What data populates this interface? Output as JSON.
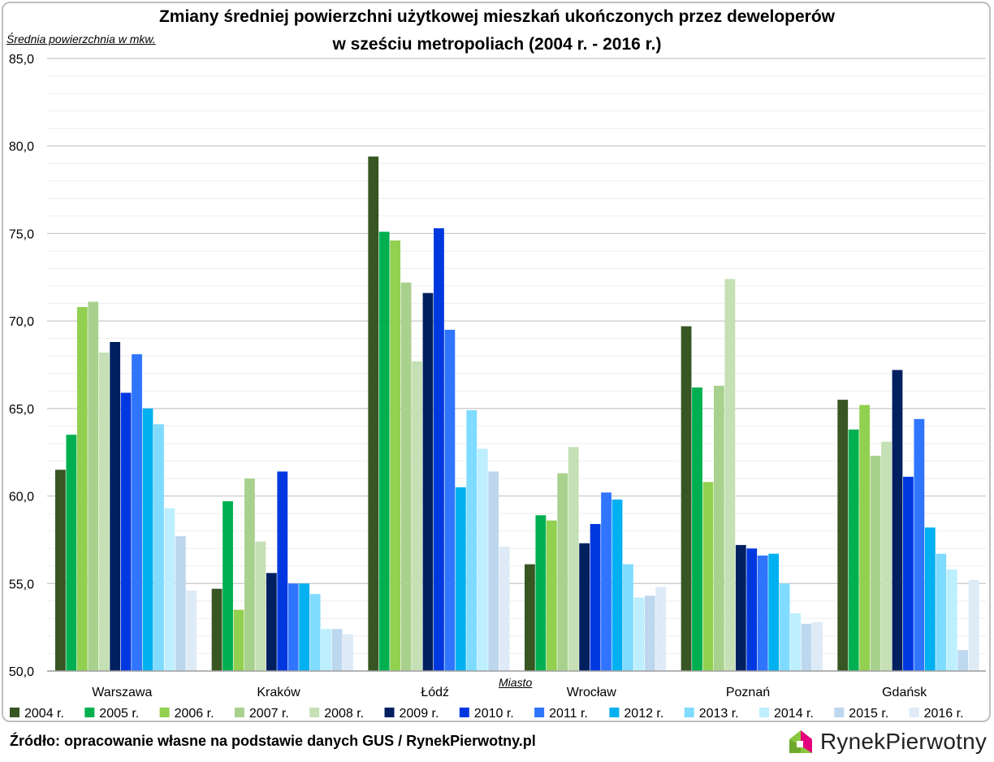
{
  "chart_data": {
    "type": "bar",
    "title_line1": "Zmiany średniej powierzchni użytkowej mieszkań ukończonych przez deweloperów",
    "title_line2": "w sześciu metropoliach (2004 r. - 2016 r.)",
    "ylabel": "Średnia powierzchnia w mkw.",
    "xlabel": "Miasto",
    "ylim": [
      50,
      85
    ],
    "yticks": [
      "50,0",
      "55,0",
      "60,0",
      "65,0",
      "70,0",
      "75,0",
      "80,0",
      "85,0"
    ],
    "categories": [
      "Warszawa",
      "Kraków",
      "Łódź",
      "Wrocław",
      "Poznań",
      "Gdańsk"
    ],
    "series": [
      {
        "name": "2004 r.",
        "color": "#375623",
        "values": [
          61.5,
          54.7,
          79.4,
          56.1,
          69.7,
          65.5
        ]
      },
      {
        "name": "2005 r.",
        "color": "#00b050",
        "values": [
          63.5,
          59.7,
          75.1,
          58.9,
          66.2,
          63.8
        ]
      },
      {
        "name": "2006 r.",
        "color": "#92d050",
        "values": [
          70.8,
          53.5,
          74.6,
          58.6,
          60.8,
          65.2
        ]
      },
      {
        "name": "2007 r.",
        "color": "#a9d18e",
        "values": [
          71.1,
          61.0,
          72.2,
          61.3,
          66.3,
          62.3
        ]
      },
      {
        "name": "2008 r.",
        "color": "#c5e0b4",
        "values": [
          68.2,
          57.4,
          67.7,
          62.8,
          72.4,
          63.1
        ]
      },
      {
        "name": "2009 r.",
        "color": "#002060",
        "values": [
          68.8,
          55.6,
          71.6,
          57.3,
          57.2,
          67.2
        ]
      },
      {
        "name": "2010 r.",
        "color": "#0038e0",
        "values": [
          65.9,
          61.4,
          75.3,
          58.4,
          57.0,
          61.1
        ]
      },
      {
        "name": "2011 r.",
        "color": "#2f75ff",
        "values": [
          68.1,
          55.0,
          69.5,
          60.2,
          56.6,
          64.4
        ]
      },
      {
        "name": "2012 r.",
        "color": "#00b0f0",
        "values": [
          65.0,
          55.0,
          60.5,
          59.8,
          56.7,
          58.2
        ]
      },
      {
        "name": "2013 r.",
        "color": "#7fdbff",
        "values": [
          64.1,
          54.4,
          64.9,
          56.1,
          55.0,
          56.7
        ]
      },
      {
        "name": "2014 r.",
        "color": "#bdefff",
        "values": [
          59.3,
          52.4,
          62.7,
          54.2,
          53.3,
          55.8
        ]
      },
      {
        "name": "2015 r.",
        "color": "#bdd7ee",
        "values": [
          57.7,
          52.4,
          61.4,
          54.3,
          52.7,
          51.2
        ]
      },
      {
        "name": "2016 r.",
        "color": "#deebf7",
        "values": [
          54.6,
          52.1,
          57.1,
          54.8,
          52.8,
          55.2
        ]
      }
    ]
  },
  "footer": {
    "source": "Źródło: opracowanie własne na podstawie danych GUS / RynekPierwotny.pl",
    "logo_text": "RynekPierwotny"
  }
}
